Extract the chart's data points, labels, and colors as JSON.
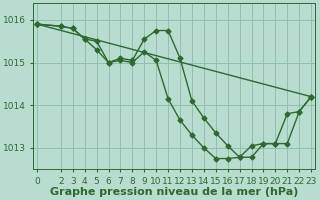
{
  "bg_color": "#b8ddd0",
  "grid_color": "#90bfb0",
  "line_color": "#2d6a2d",
  "marker": "D",
  "marker_size": 2.5,
  "line_width": 1.0,
  "xlabel": "Graphe pression niveau de la mer (hPa)",
  "xlabel_fontsize": 8,
  "xlabel_fontweight": "bold",
  "xlabel_color": "#2d6a2d",
  "tick_color": "#2d6a2d",
  "tick_fontsize": 6.5,
  "ylim": [
    1012.5,
    1016.4
  ],
  "xlim": [
    -0.3,
    23.3
  ],
  "yticks": [
    1013,
    1014,
    1015,
    1016
  ],
  "xticks": [
    0,
    2,
    3,
    4,
    5,
    6,
    7,
    8,
    9,
    10,
    11,
    12,
    13,
    14,
    15,
    16,
    17,
    18,
    19,
    20,
    21,
    22,
    23
  ],
  "line1_x": [
    0,
    2,
    3,
    4,
    5,
    6,
    7,
    8,
    9,
    10,
    11,
    12,
    13,
    14,
    15,
    16,
    17,
    18,
    19,
    20,
    21,
    22,
    23
  ],
  "line1_y": [
    1015.9,
    1015.85,
    1015.8,
    1015.55,
    1015.3,
    1015.0,
    1015.05,
    1015.0,
    1015.25,
    1015.05,
    1014.15,
    1013.65,
    1013.3,
    1013.0,
    1012.75,
    1012.75,
    1012.78,
    1013.05,
    1013.1,
    1013.1,
    1013.8,
    1013.85,
    1014.2
  ],
  "line2_x": [
    0,
    2,
    3,
    4,
    5,
    6,
    7,
    8,
    9,
    10,
    11,
    12,
    13,
    14,
    15,
    16,
    17,
    18,
    19,
    20,
    21,
    22,
    23
  ],
  "line2_y": [
    1015.9,
    1015.85,
    1015.8,
    1015.55,
    1015.5,
    1015.0,
    1015.1,
    1015.05,
    1015.55,
    1015.75,
    1015.75,
    1015.1,
    1014.1,
    1013.7,
    1013.35,
    1013.05,
    1012.78,
    1012.78,
    1013.1,
    1013.1,
    1013.1,
    1013.85,
    1014.2
  ],
  "line3_x": [
    0,
    23
  ],
  "line3_y": [
    1015.9,
    1014.2
  ]
}
